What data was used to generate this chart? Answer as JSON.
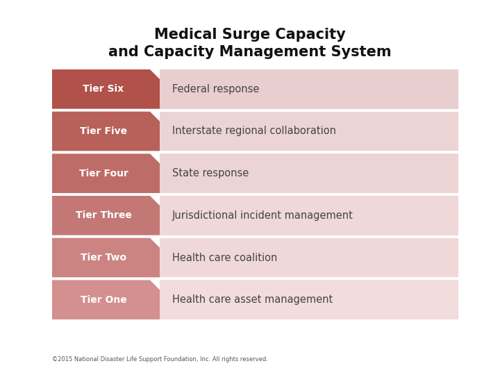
{
  "title_line1": "Medical Surge Capacity",
  "title_line2": "and Capacity Management System",
  "tiers": [
    {
      "label": "Tier Six",
      "description": "Federal response",
      "label_color": "#B0514A",
      "desc_color": "#E8CECE"
    },
    {
      "label": "Tier Five",
      "description": "Interstate regional collaboration",
      "label_color": "#B8605A",
      "desc_color": "#EDD4D4"
    },
    {
      "label": "Tier Four",
      "description": "State response",
      "label_color": "#BE6C67",
      "desc_color": "#EDD4D4"
    },
    {
      "label": "Tier Three",
      "description": "Jurisdictional incident management",
      "label_color": "#C47875",
      "desc_color": "#F0D8D8"
    },
    {
      "label": "Tier Two",
      "description": "Health care coalition",
      "label_color": "#CB8482",
      "desc_color": "#F0D8D8"
    },
    {
      "label": "Tier One",
      "description": "Health care asset management",
      "label_color": "#D4908E",
      "desc_color": "#F3DCDC"
    }
  ],
  "label_text_color": "#FFFFFF",
  "desc_text_color": "#444444",
  "title_color": "#111111",
  "footer_text": "©2015 National Disaster Life Support Foundation, Inc. All rights reserved.",
  "background_color": "#FFFFFF",
  "fig_width": 7.2,
  "fig_height": 5.4,
  "dpi": 100
}
